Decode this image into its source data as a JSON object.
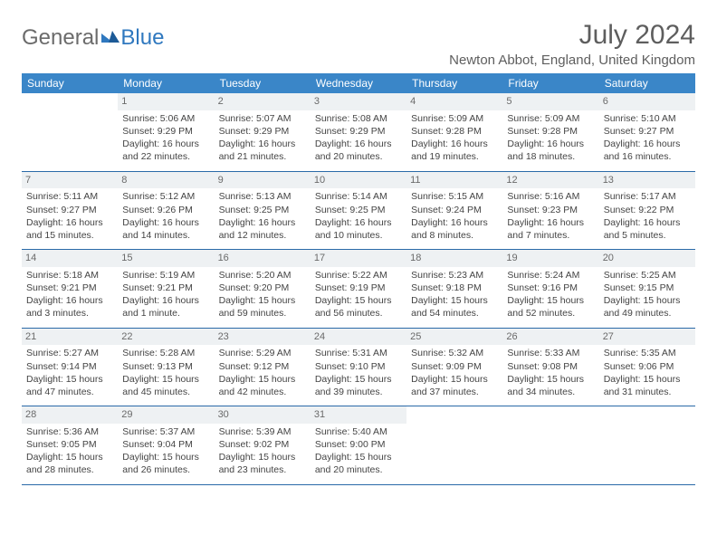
{
  "logo": {
    "text1": "General",
    "text2": "Blue"
  },
  "title": "July 2024",
  "location": "Newton Abbot, England, United Kingdom",
  "colors": {
    "header_bg": "#3a86c8",
    "header_text": "#ffffff",
    "rule": "#2a6aa8",
    "daynum_bg": "#eef1f3",
    "text": "#444444",
    "title_text": "#5e5e5e"
  },
  "weekdays": [
    "Sunday",
    "Monday",
    "Tuesday",
    "Wednesday",
    "Thursday",
    "Friday",
    "Saturday"
  ],
  "weeks": [
    [
      {
        "day": "",
        "lines": []
      },
      {
        "day": "1",
        "lines": [
          "Sunrise: 5:06 AM",
          "Sunset: 9:29 PM",
          "Daylight: 16 hours and 22 minutes."
        ]
      },
      {
        "day": "2",
        "lines": [
          "Sunrise: 5:07 AM",
          "Sunset: 9:29 PM",
          "Daylight: 16 hours and 21 minutes."
        ]
      },
      {
        "day": "3",
        "lines": [
          "Sunrise: 5:08 AM",
          "Sunset: 9:29 PM",
          "Daylight: 16 hours and 20 minutes."
        ]
      },
      {
        "day": "4",
        "lines": [
          "Sunrise: 5:09 AM",
          "Sunset: 9:28 PM",
          "Daylight: 16 hours and 19 minutes."
        ]
      },
      {
        "day": "5",
        "lines": [
          "Sunrise: 5:09 AM",
          "Sunset: 9:28 PM",
          "Daylight: 16 hours and 18 minutes."
        ]
      },
      {
        "day": "6",
        "lines": [
          "Sunrise: 5:10 AM",
          "Sunset: 9:27 PM",
          "Daylight: 16 hours and 16 minutes."
        ]
      }
    ],
    [
      {
        "day": "7",
        "lines": [
          "Sunrise: 5:11 AM",
          "Sunset: 9:27 PM",
          "Daylight: 16 hours and 15 minutes."
        ]
      },
      {
        "day": "8",
        "lines": [
          "Sunrise: 5:12 AM",
          "Sunset: 9:26 PM",
          "Daylight: 16 hours and 14 minutes."
        ]
      },
      {
        "day": "9",
        "lines": [
          "Sunrise: 5:13 AM",
          "Sunset: 9:25 PM",
          "Daylight: 16 hours and 12 minutes."
        ]
      },
      {
        "day": "10",
        "lines": [
          "Sunrise: 5:14 AM",
          "Sunset: 9:25 PM",
          "Daylight: 16 hours and 10 minutes."
        ]
      },
      {
        "day": "11",
        "lines": [
          "Sunrise: 5:15 AM",
          "Sunset: 9:24 PM",
          "Daylight: 16 hours and 8 minutes."
        ]
      },
      {
        "day": "12",
        "lines": [
          "Sunrise: 5:16 AM",
          "Sunset: 9:23 PM",
          "Daylight: 16 hours and 7 minutes."
        ]
      },
      {
        "day": "13",
        "lines": [
          "Sunrise: 5:17 AM",
          "Sunset: 9:22 PM",
          "Daylight: 16 hours and 5 minutes."
        ]
      }
    ],
    [
      {
        "day": "14",
        "lines": [
          "Sunrise: 5:18 AM",
          "Sunset: 9:21 PM",
          "Daylight: 16 hours and 3 minutes."
        ]
      },
      {
        "day": "15",
        "lines": [
          "Sunrise: 5:19 AM",
          "Sunset: 9:21 PM",
          "Daylight: 16 hours and 1 minute."
        ]
      },
      {
        "day": "16",
        "lines": [
          "Sunrise: 5:20 AM",
          "Sunset: 9:20 PM",
          "Daylight: 15 hours and 59 minutes."
        ]
      },
      {
        "day": "17",
        "lines": [
          "Sunrise: 5:22 AM",
          "Sunset: 9:19 PM",
          "Daylight: 15 hours and 56 minutes."
        ]
      },
      {
        "day": "18",
        "lines": [
          "Sunrise: 5:23 AM",
          "Sunset: 9:18 PM",
          "Daylight: 15 hours and 54 minutes."
        ]
      },
      {
        "day": "19",
        "lines": [
          "Sunrise: 5:24 AM",
          "Sunset: 9:16 PM",
          "Daylight: 15 hours and 52 minutes."
        ]
      },
      {
        "day": "20",
        "lines": [
          "Sunrise: 5:25 AM",
          "Sunset: 9:15 PM",
          "Daylight: 15 hours and 49 minutes."
        ]
      }
    ],
    [
      {
        "day": "21",
        "lines": [
          "Sunrise: 5:27 AM",
          "Sunset: 9:14 PM",
          "Daylight: 15 hours and 47 minutes."
        ]
      },
      {
        "day": "22",
        "lines": [
          "Sunrise: 5:28 AM",
          "Sunset: 9:13 PM",
          "Daylight: 15 hours and 45 minutes."
        ]
      },
      {
        "day": "23",
        "lines": [
          "Sunrise: 5:29 AM",
          "Sunset: 9:12 PM",
          "Daylight: 15 hours and 42 minutes."
        ]
      },
      {
        "day": "24",
        "lines": [
          "Sunrise: 5:31 AM",
          "Sunset: 9:10 PM",
          "Daylight: 15 hours and 39 minutes."
        ]
      },
      {
        "day": "25",
        "lines": [
          "Sunrise: 5:32 AM",
          "Sunset: 9:09 PM",
          "Daylight: 15 hours and 37 minutes."
        ]
      },
      {
        "day": "26",
        "lines": [
          "Sunrise: 5:33 AM",
          "Sunset: 9:08 PM",
          "Daylight: 15 hours and 34 minutes."
        ]
      },
      {
        "day": "27",
        "lines": [
          "Sunrise: 5:35 AM",
          "Sunset: 9:06 PM",
          "Daylight: 15 hours and 31 minutes."
        ]
      }
    ],
    [
      {
        "day": "28",
        "lines": [
          "Sunrise: 5:36 AM",
          "Sunset: 9:05 PM",
          "Daylight: 15 hours and 28 minutes."
        ]
      },
      {
        "day": "29",
        "lines": [
          "Sunrise: 5:37 AM",
          "Sunset: 9:04 PM",
          "Daylight: 15 hours and 26 minutes."
        ]
      },
      {
        "day": "30",
        "lines": [
          "Sunrise: 5:39 AM",
          "Sunset: 9:02 PM",
          "Daylight: 15 hours and 23 minutes."
        ]
      },
      {
        "day": "31",
        "lines": [
          "Sunrise: 5:40 AM",
          "Sunset: 9:00 PM",
          "Daylight: 15 hours and 20 minutes."
        ]
      },
      {
        "day": "",
        "lines": []
      },
      {
        "day": "",
        "lines": []
      },
      {
        "day": "",
        "lines": []
      }
    ]
  ]
}
